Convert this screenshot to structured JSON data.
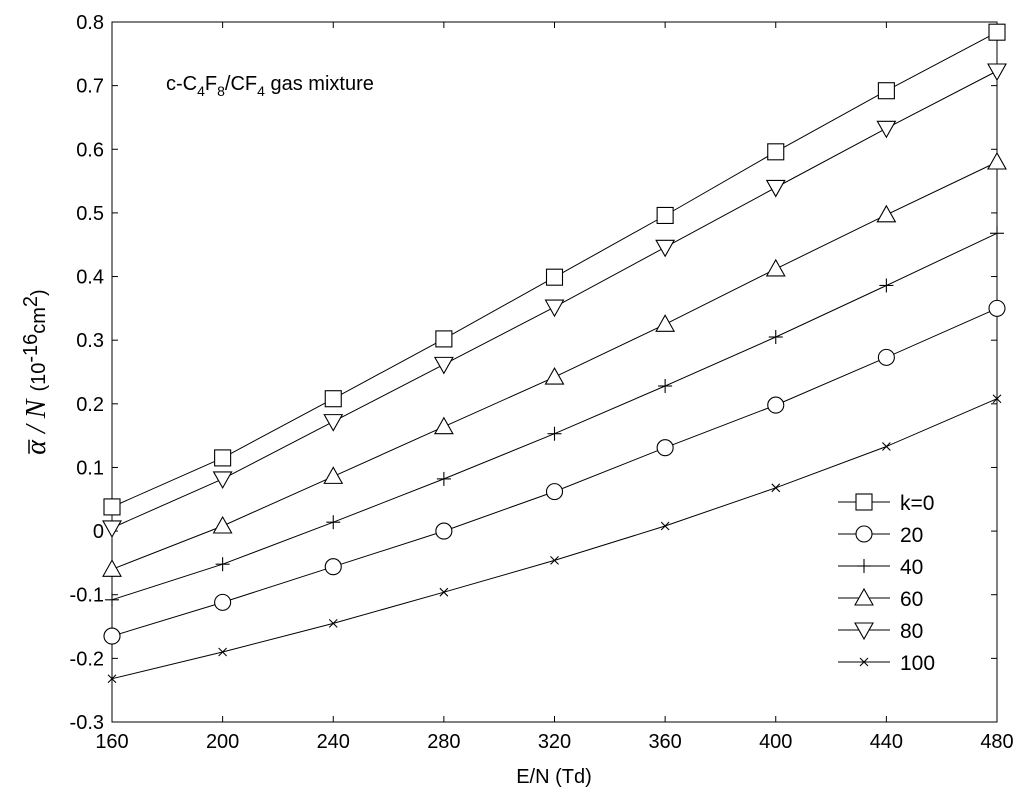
{
  "chart_data": {
    "type": "line",
    "annotation": {
      "prefix": "c-C",
      "sub1": "4",
      "mid1": "F",
      "sub2": "8",
      "mid2": "/CF",
      "sub3": "4",
      "suffix": " gas mixture"
    },
    "xlabel": "E/N (Td)",
    "ylabel": {
      "symbol": "α",
      "slash": " / N",
      "unit_open": "(10",
      "unit_exp": "-16",
      "unit_mid": "cm",
      "unit_sup": "2",
      "unit_close": ")"
    },
    "xlim": [
      160,
      480
    ],
    "ylim": [
      -0.3,
      0.8
    ],
    "x_ticks": [
      160,
      200,
      240,
      280,
      320,
      360,
      400,
      440,
      480
    ],
    "y_ticks": [
      -0.3,
      -0.2,
      -0.1,
      0,
      0.1,
      0.2,
      0.3,
      0.4,
      0.5,
      0.6,
      0.7,
      0.8
    ],
    "y_tick_labels": [
      "-0.3",
      "-0.2",
      "-0.1",
      "0",
      "0.1",
      "0.2",
      "0.3",
      "0.4",
      "0.5",
      "0.6",
      "0.7",
      "0.8"
    ],
    "legend_position": "bottom-right",
    "grid": false,
    "x": [
      160,
      200,
      240,
      280,
      320,
      360,
      400,
      440,
      480
    ],
    "series": [
      {
        "name": "k=0",
        "marker": "square",
        "values": [
          0.038,
          0.115,
          0.208,
          0.302,
          0.399,
          0.496,
          0.596,
          0.692,
          0.784
        ]
      },
      {
        "name": "20",
        "marker": "circle",
        "values": [
          -0.165,
          -0.112,
          -0.056,
          0.0,
          0.062,
          0.131,
          0.198,
          0.273,
          0.35
        ]
      },
      {
        "name": "40",
        "marker": "plus",
        "values": [
          -0.108,
          -0.052,
          0.014,
          0.082,
          0.153,
          0.228,
          0.305,
          0.386,
          0.468
        ]
      },
      {
        "name": "60",
        "marker": "triangle-up",
        "values": [
          -0.06,
          0.008,
          0.086,
          0.164,
          0.242,
          0.325,
          0.412,
          0.497,
          0.58
        ]
      },
      {
        "name": "80",
        "marker": "triangle-down",
        "values": [
          0.005,
          0.082,
          0.172,
          0.262,
          0.352,
          0.446,
          0.54,
          0.633,
          0.723
        ]
      },
      {
        "name": "100",
        "marker": "x",
        "values": [
          -0.232,
          -0.19,
          -0.145,
          -0.096,
          -0.046,
          0.008,
          0.068,
          0.133,
          0.208
        ]
      }
    ]
  }
}
